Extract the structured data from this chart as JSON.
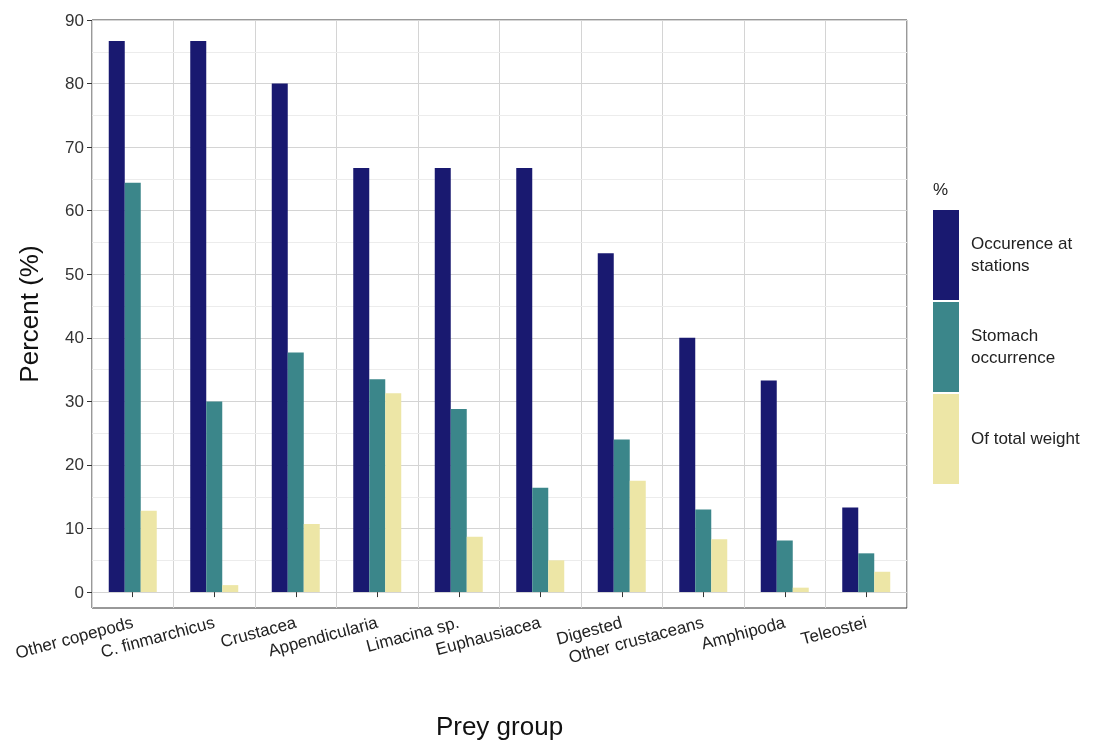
{
  "chart_data": {
    "type": "bar",
    "xlabel": "Prey group",
    "ylabel": "Percent (%)",
    "legend_title": "%",
    "categories": [
      "Other copepods",
      "C. finmarchicus",
      "Crustacea",
      "Appendicularia",
      "Limacina sp.",
      "Euphausiacea",
      "Digested",
      "Other crustaceans",
      "Amphipoda",
      "Teleostei"
    ],
    "series": [
      {
        "name": "Occurence at stations",
        "color": "#191970",
        "values": [
          86.7,
          86.7,
          80,
          66.7,
          66.7,
          66.7,
          53.3,
          40,
          33.3,
          13.3
        ]
      },
      {
        "name": "Stomach occurrence",
        "color": "#3b868a",
        "values": [
          64.4,
          30,
          37.7,
          33.5,
          28.8,
          16.4,
          24,
          13,
          8.1,
          6.1
        ]
      },
      {
        "name": "Of total weight",
        "color": "#ede6a6",
        "values": [
          12.8,
          1.1,
          10.7,
          31.3,
          8.7,
          5,
          17.5,
          8.3,
          0.7,
          3.2
        ]
      }
    ],
    "ylim": [
      -2.5,
      90
    ],
    "yticks": [
      0,
      10,
      20,
      30,
      40,
      50,
      60,
      70,
      80,
      90
    ],
    "grid": true,
    "legend": "right"
  }
}
